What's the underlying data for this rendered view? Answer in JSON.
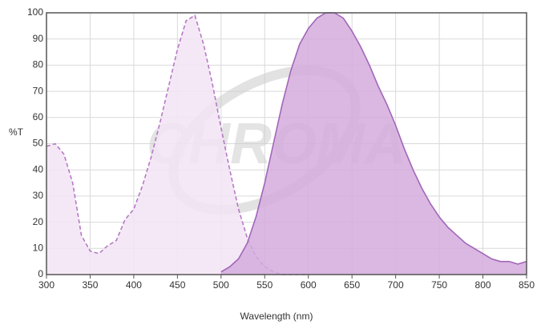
{
  "chart_data": {
    "type": "area",
    "watermark": "CHROMA",
    "x_label": "Wavelength (nm)",
    "y_label": "%T",
    "x": [
      300,
      310,
      320,
      330,
      340,
      350,
      360,
      370,
      380,
      390,
      400,
      410,
      420,
      430,
      440,
      450,
      460,
      470,
      480,
      490,
      500,
      510,
      520,
      530,
      540,
      550,
      560,
      570,
      580,
      590,
      600,
      610,
      620,
      630,
      640,
      650,
      660,
      670,
      680,
      690,
      700,
      710,
      720,
      730,
      740,
      750,
      760,
      770,
      780,
      790,
      800,
      810,
      820,
      830,
      840,
      850
    ],
    "series": [
      {
        "color": "#b57ac5",
        "fill": "#f3e4f5",
        "dashed": true,
        "values": [
          49,
          50,
          46,
          35,
          15,
          9,
          8,
          11,
          13,
          21,
          25,
          34,
          45,
          58,
          72,
          86,
          97,
          99,
          88,
          73,
          56,
          40,
          25,
          14,
          7,
          3,
          1,
          0,
          0,
          0,
          0,
          null,
          null,
          null,
          null,
          null,
          null,
          null,
          null,
          null,
          null,
          null,
          null,
          null,
          null,
          null,
          null,
          null,
          null,
          null,
          null,
          null,
          null,
          null,
          null,
          null
        ]
      },
      {
        "color": "#a266b8",
        "fill": "#d3acdd",
        "dashed": false,
        "values": [
          null,
          null,
          null,
          null,
          null,
          null,
          null,
          null,
          null,
          null,
          null,
          null,
          null,
          null,
          null,
          null,
          null,
          null,
          null,
          null,
          1,
          3,
          6,
          12,
          22,
          35,
          50,
          65,
          78,
          88,
          94,
          98,
          100,
          100,
          98,
          93,
          87,
          80,
          72,
          65,
          57,
          48,
          40,
          33,
          27,
          22,
          18,
          15,
          12,
          10,
          8,
          6,
          5,
          5,
          4,
          5
        ]
      }
    ],
    "xlim": [
      300,
      850
    ],
    "ylim": [
      0,
      100
    ],
    "xticks": [
      300,
      350,
      400,
      450,
      500,
      550,
      600,
      650,
      700,
      750,
      800,
      850
    ],
    "yticks": [
      0,
      10,
      20,
      30,
      40,
      50,
      60,
      70,
      80,
      90,
      100
    ],
    "grid": true
  }
}
